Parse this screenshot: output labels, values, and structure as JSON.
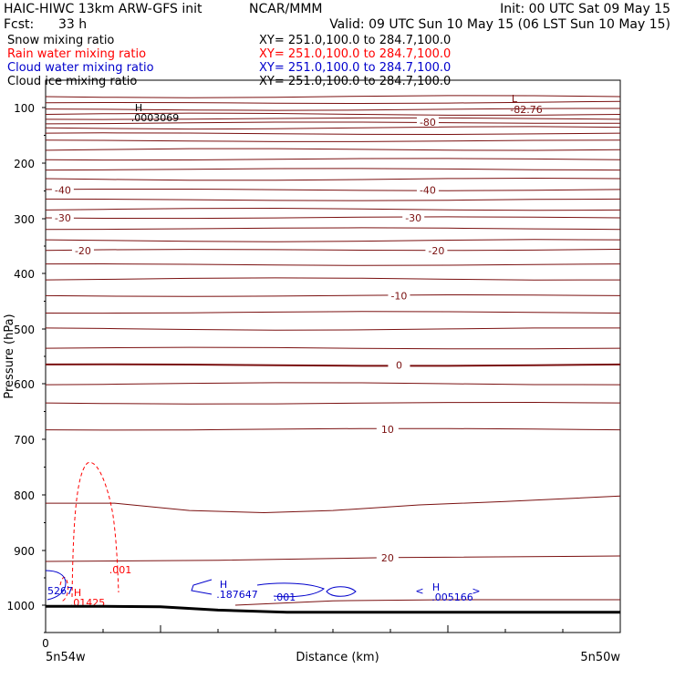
{
  "header": {
    "title": "HAIC-HIWC 13km ARW-GFS init",
    "org": "NCAR/MMM",
    "init": "Init: 00 UTC Sat 09 May 15",
    "fcst_label": "Fcst:",
    "fcst_value": "33 h",
    "valid": "Valid: 09 UTC Sun 10 May 15 (06 LST Sun 10 May 15)"
  },
  "legend": [
    {
      "label": "Snow mixing ratio",
      "xy": "XY=  251.0,100.0 to 284.7,100.0",
      "color": "#000000"
    },
    {
      "label": "Rain water mixing ratio",
      "xy": "XY=  251.0,100.0 to 284.7,100.0",
      "color": "#ff0000"
    },
    {
      "label": "Cloud water mixing ratio",
      "xy": "XY=  251.0,100.0 to 284.7,100.0",
      "color": "#0000cc"
    },
    {
      "label": "Cloud ice mixing ratio",
      "xy": "XY=  251.0,100.0 to 284.7,100.0",
      "color": "#000000"
    }
  ],
  "chart_data": {
    "type": "line",
    "ylabel": "Pressure (hPa)",
    "xlabel": "Distance (km)",
    "y_ticks": [
      "100",
      "200",
      "300",
      "400",
      "500",
      "600",
      "700",
      "800",
      "900",
      "1000"
    ],
    "ylim": [
      1050,
      80
    ],
    "x_origin_label": "0",
    "x_start_label": "5n54w",
    "x_end_label": "5n50w",
    "temperature_contours": {
      "color": "#7a1010",
      "labels": [
        {
          "text": "-80",
          "p": 126,
          "xf": 0.665
        },
        {
          "text": "-40",
          "p": 248,
          "xf": 0.03
        },
        {
          "text": "-40",
          "p": 248,
          "xf": 0.665
        },
        {
          "text": "-30",
          "p": 298,
          "xf": 0.03
        },
        {
          "text": "-30",
          "p": 298,
          "xf": 0.64
        },
        {
          "text": "-20",
          "p": 358,
          "xf": 0.065
        },
        {
          "text": "-20",
          "p": 358,
          "xf": 0.68
        },
        {
          "text": "-10",
          "p": 440,
          "xf": 0.615
        },
        {
          "text": "0",
          "p": 566,
          "xf": 0.615
        },
        {
          "text": "10",
          "p": 682,
          "xf": 0.595
        },
        {
          "text": "20",
          "p": 913,
          "xf": 0.595
        }
      ],
      "extremes": [
        {
          "letter": "L",
          "value": "-82.76",
          "p": 110,
          "xf": 0.81
        },
        {
          "letter": "H",
          "value": ".0003069",
          "p": 110,
          "xf": 0.145
        }
      ]
    },
    "rain_water": {
      "color": "#ff0000",
      "contour_label": ".001",
      "max_value": ".01425"
    },
    "cloud_water": {
      "color": "#0000cc",
      "labels": [
        {
          "text": "5267",
          "xf": 0.0
        },
        {
          "text": ".187647",
          "xf": 0.3
        },
        {
          "text": ".001",
          "xf": 0.395
        },
        {
          "text": ".005166",
          "xf": 0.675
        }
      ]
    },
    "terrain_pressure": [
      1002,
      1002,
      1003,
      1009,
      1013,
      1013
    ]
  }
}
